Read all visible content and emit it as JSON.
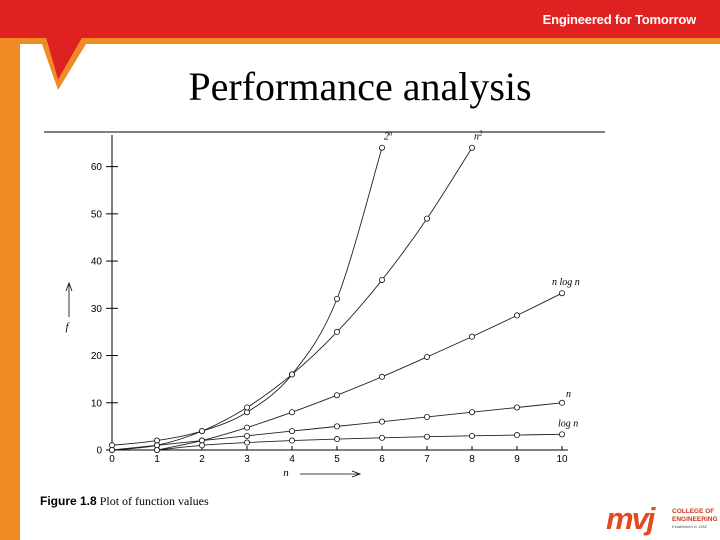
{
  "header": {
    "tagline": "Engineered for Tomorrow",
    "title": "Performance analysis",
    "accent_color": "#e8431f",
    "banner_color": "#e02121"
  },
  "footer": {
    "logo_mark": "mvj",
    "logo_line1": "COLLEGE OF",
    "logo_line2": "ENGINEERING",
    "logo_sub": "Established in 1982"
  },
  "chart_data": {
    "type": "line",
    "title": "",
    "caption_label": "Figure 1.8",
    "caption_text": "Plot of function values",
    "xlabel": "n",
    "ylabel": "f",
    "xlim": [
      0,
      10
    ],
    "ylim": [
      0,
      65
    ],
    "x_ticks": [
      "0",
      "1",
      "2",
      "3",
      "4",
      "5",
      "6",
      "7",
      "8",
      "9",
      "10"
    ],
    "y_ticks": [
      "0",
      "10",
      "20",
      "30",
      "40",
      "50",
      "60"
    ],
    "grid": false,
    "legend": "end-of-line labels",
    "series": [
      {
        "name": "2^n",
        "label_base": "2",
        "label_sup": "n",
        "x": [
          0,
          1,
          2,
          3,
          4,
          5,
          6
        ],
        "values": [
          1,
          2,
          4,
          8,
          16,
          32,
          64
        ]
      },
      {
        "name": "n^2",
        "label_base": "n",
        "label_sup": "2",
        "x": [
          0,
          1,
          2,
          3,
          4,
          5,
          6,
          7,
          8
        ],
        "values": [
          0,
          1,
          4,
          9,
          16,
          25,
          36,
          49,
          64
        ]
      },
      {
        "name": "n log n",
        "label_base": "n log n",
        "label_sup": "",
        "x": [
          1,
          2,
          3,
          4,
          5,
          6,
          7,
          8,
          9,
          10
        ],
        "values": [
          0,
          2,
          4.75,
          8,
          11.6,
          15.5,
          19.7,
          24,
          28.5,
          33.2
        ]
      },
      {
        "name": "n",
        "label_base": "n",
        "label_sup": "",
        "x": [
          0,
          1,
          2,
          3,
          4,
          5,
          6,
          7,
          8,
          9,
          10
        ],
        "values": [
          0,
          1,
          2,
          3,
          4,
          5,
          6,
          7,
          8,
          9,
          10
        ]
      },
      {
        "name": "log n",
        "label_base": "log n",
        "label_sup": "",
        "x": [
          1,
          2,
          3,
          4,
          5,
          6,
          7,
          8,
          9,
          10
        ],
        "values": [
          0,
          1,
          1.58,
          2,
          2.32,
          2.58,
          2.81,
          3,
          3.17,
          3.32
        ]
      }
    ]
  }
}
